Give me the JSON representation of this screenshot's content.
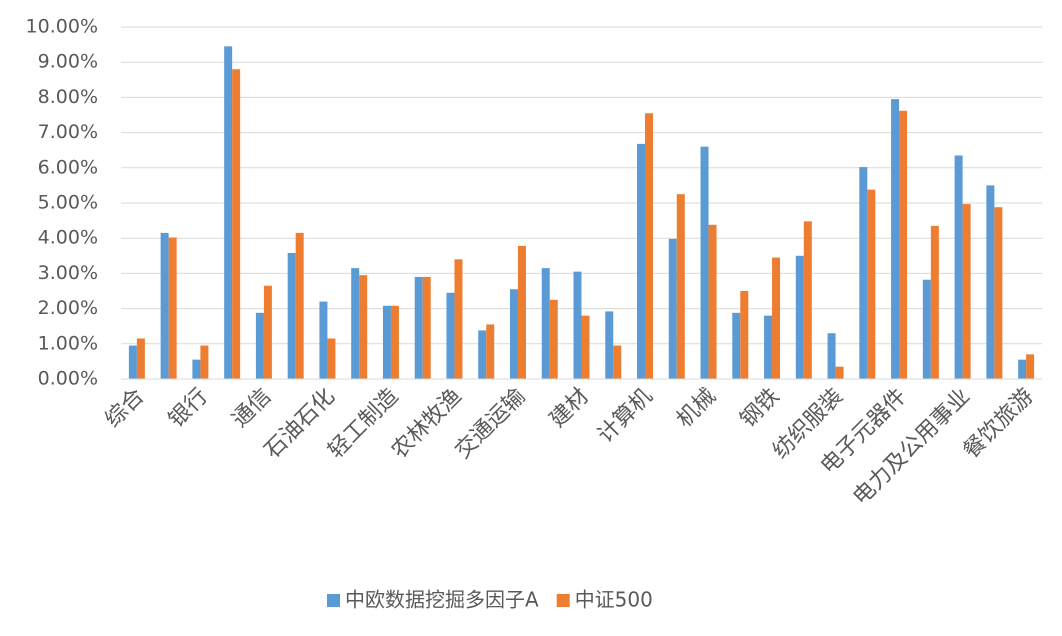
{
  "chart_data": {
    "type": "bar",
    "categories": [
      "综合",
      null,
      "银行",
      null,
      "通信",
      null,
      "石油石化",
      null,
      "轻工制造",
      null,
      "农林牧渔",
      null,
      "交通运输",
      null,
      "建材",
      null,
      "计算机",
      null,
      "机械",
      null,
      "钢铁",
      null,
      "纺织服装",
      null,
      "电子元器件",
      null,
      "电力及公用事业",
      null,
      "餐饮旅游"
    ],
    "series": [
      {
        "name": "中欧数据挖掘多因子A",
        "color": "#5b9bd5",
        "values": [
          0.95,
          4.15,
          0.55,
          9.45,
          1.88,
          3.58,
          2.2,
          3.15,
          2.08,
          2.9,
          2.45,
          1.38,
          2.55,
          3.15,
          3.05,
          1.92,
          6.68,
          3.98,
          6.6,
          1.88,
          1.8,
          3.5,
          1.3,
          6.02,
          7.95,
          2.82,
          6.35,
          5.5,
          0.55
        ]
      },
      {
        "name": "中证500",
        "color": "#ed7d31",
        "values": [
          1.15,
          4.02,
          0.95,
          8.8,
          2.65,
          4.15,
          1.15,
          2.95,
          2.08,
          2.9,
          3.4,
          1.55,
          3.78,
          2.25,
          1.8,
          0.95,
          7.55,
          5.25,
          4.38,
          2.5,
          3.45,
          4.48,
          0.35,
          5.38,
          7.62,
          4.35,
          4.97,
          4.88,
          0.7
        ]
      }
    ],
    "ylim": [
      0,
      10
    ],
    "yticks": [
      {
        "value": 0,
        "label": "0.00%"
      },
      {
        "value": 1,
        "label": "1.00%"
      },
      {
        "value": 2,
        "label": "2.00%"
      },
      {
        "value": 3,
        "label": "3.00%"
      },
      {
        "value": 4,
        "label": "4.00%"
      },
      {
        "value": 5,
        "label": "5.00%"
      },
      {
        "value": 6,
        "label": "6.00%"
      },
      {
        "value": 7,
        "label": "7.00%"
      },
      {
        "value": 8,
        "label": "8.00%"
      },
      {
        "value": 9,
        "label": "9.00%"
      },
      {
        "value": 10,
        "label": "10.00%"
      }
    ],
    "grid": true,
    "legend": "bottom"
  }
}
